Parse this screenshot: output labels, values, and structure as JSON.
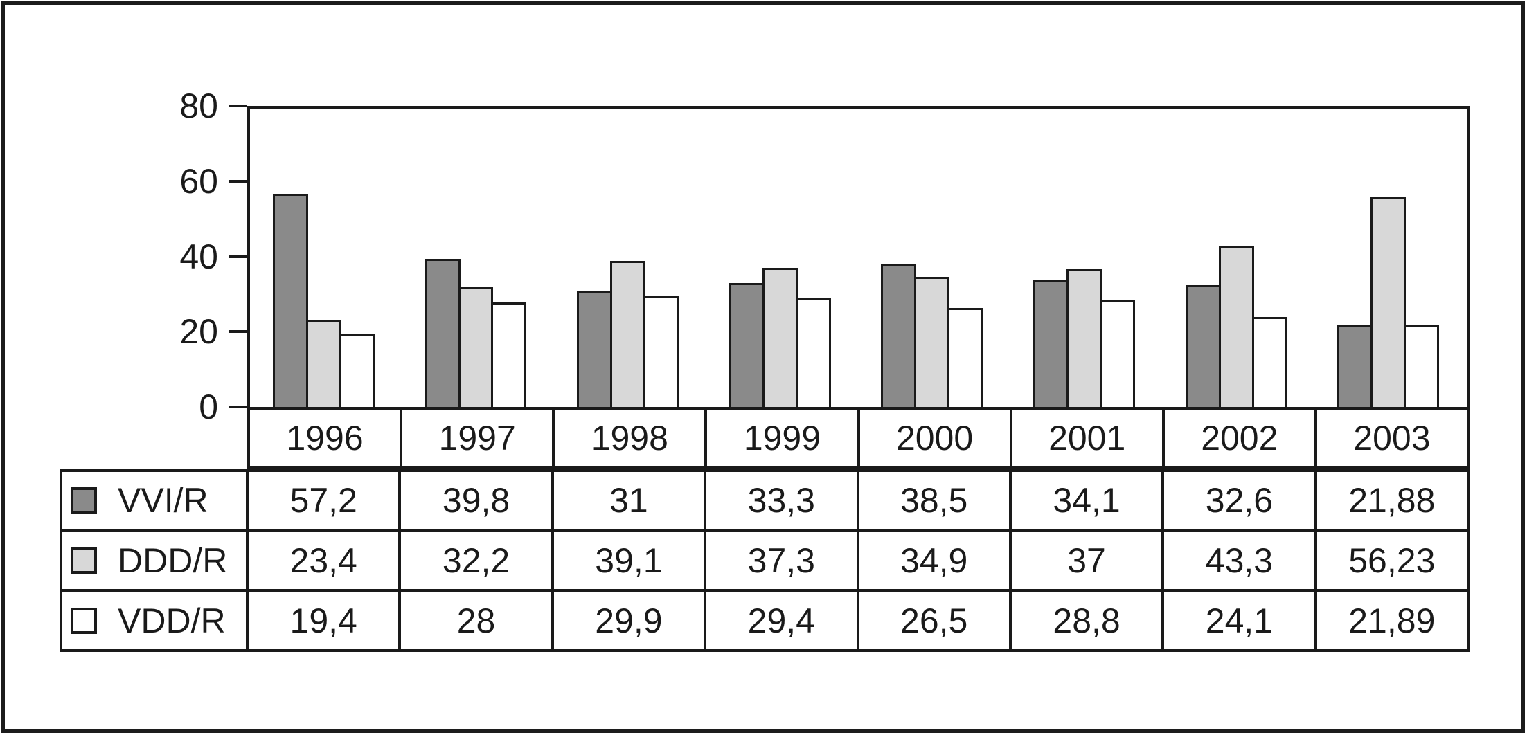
{
  "colors": {
    "background": "#ffffff",
    "frame": "#1c1c1c",
    "axis_line": "#1a1a1a",
    "text": "#1a1a1a"
  },
  "chart_data": {
    "type": "bar",
    "title": "",
    "xlabel": "",
    "ylabel": "",
    "categories": [
      "1996",
      "1997",
      "1998",
      "1999",
      "2000",
      "2001",
      "2002",
      "2003"
    ],
    "series": [
      {
        "name": "VVI/R",
        "color": "#8a8a8a",
        "values": [
          57.2,
          39.8,
          31,
          33.3,
          38.5,
          34.1,
          32.6,
          21.88
        ]
      },
      {
        "name": "DDD/R",
        "color": "#d8d8d8",
        "values": [
          23.4,
          32.2,
          39.1,
          37.3,
          34.9,
          37,
          43.3,
          56.23
        ]
      },
      {
        "name": "VDD/R",
        "color": "#ffffff",
        "values": [
          19.4,
          28,
          29.9,
          29.4,
          26.5,
          28.8,
          24.1,
          21.89
        ]
      }
    ],
    "y_axis": {
      "min": 0,
      "max": 80,
      "ticks": [
        "0",
        "20",
        "40",
        "60",
        "80"
      ]
    },
    "grid": false,
    "legend_position": "table-left"
  },
  "table": {
    "rows": [
      {
        "label": "VVI/R",
        "swatch_color": "#8a8a8a",
        "values": [
          "57,2",
          "39,8",
          "31",
          "33,3",
          "38,5",
          "34,1",
          "32,6",
          "21,88"
        ]
      },
      {
        "label": "DDD/R",
        "swatch_color": "#d8d8d8",
        "values": [
          "23,4",
          "32,2",
          "39,1",
          "37,3",
          "34,9",
          "37",
          "43,3",
          "56,23"
        ]
      },
      {
        "label": "VDD/R",
        "swatch_color": "#ffffff",
        "values": [
          "19,4",
          "28",
          "29,9",
          "29,4",
          "26,5",
          "28,8",
          "24,1",
          "21,89"
        ]
      }
    ]
  }
}
